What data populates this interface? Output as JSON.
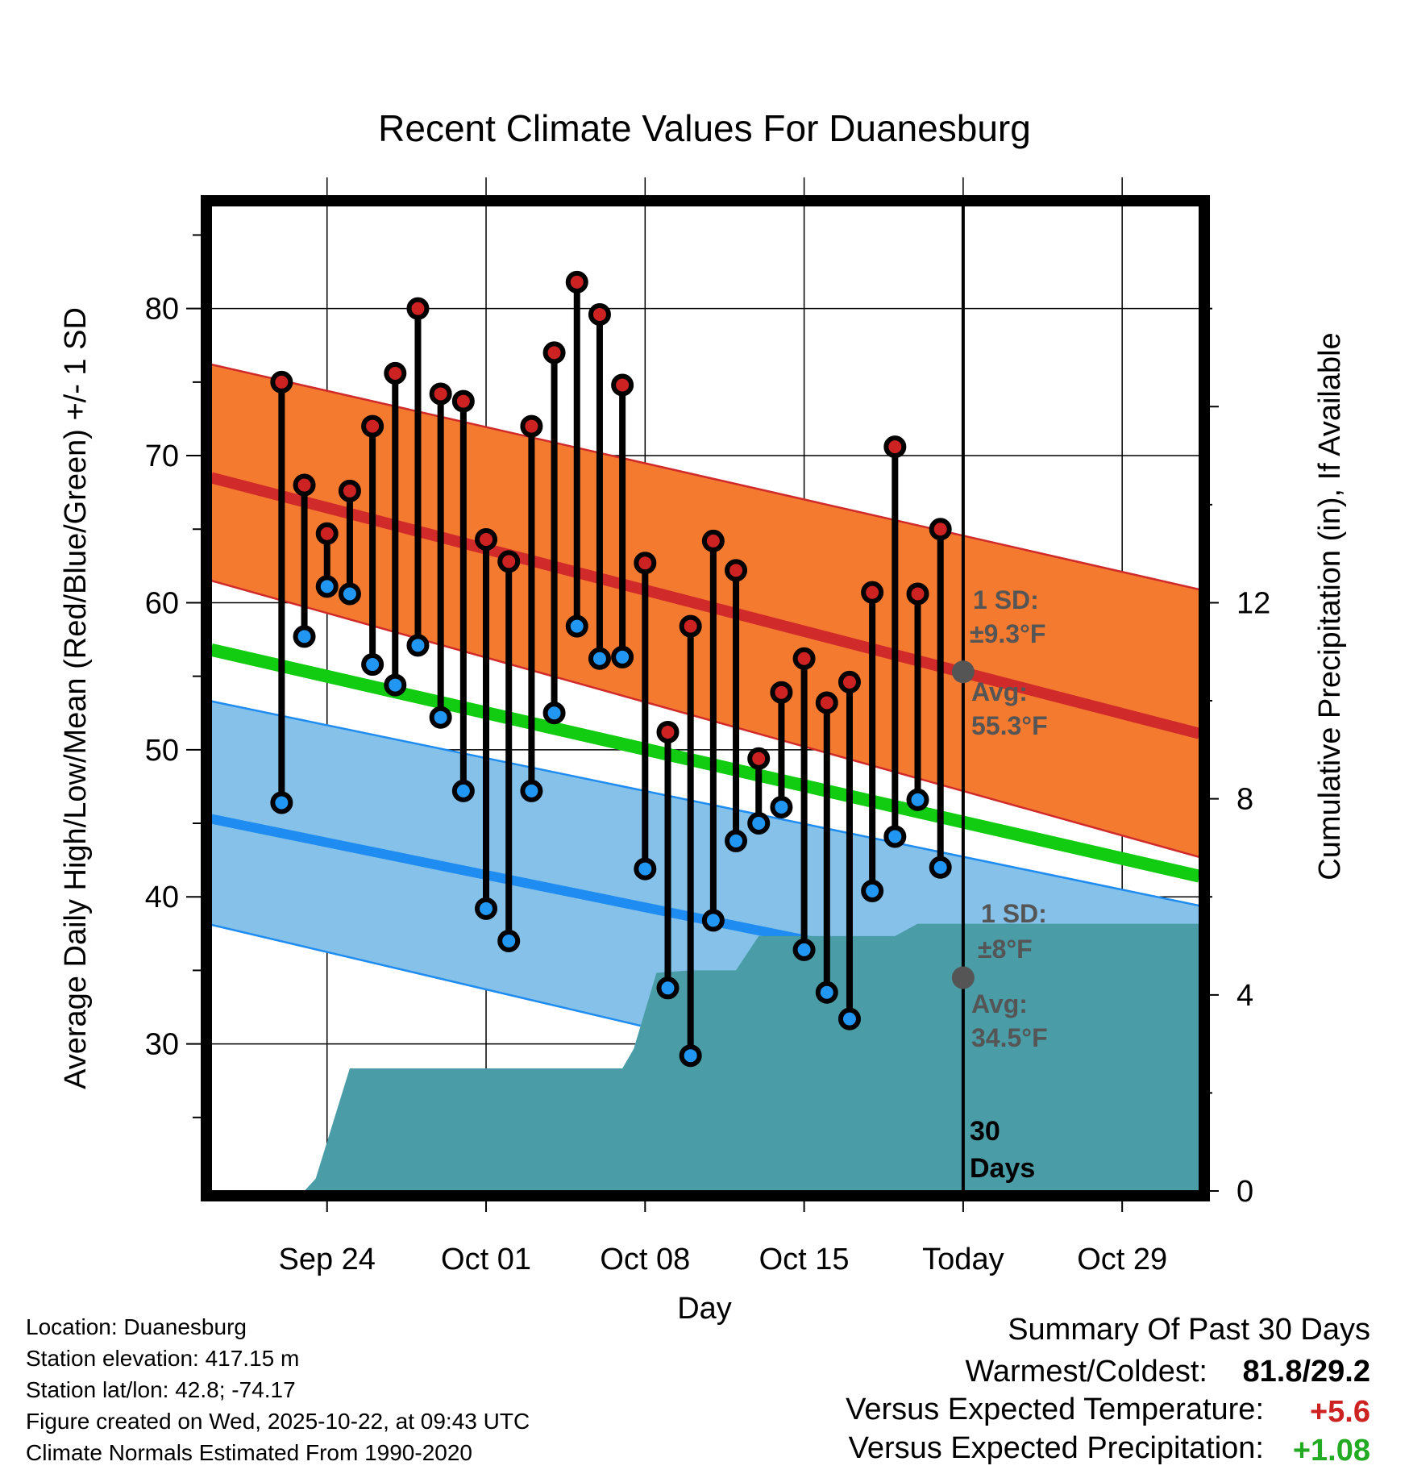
{
  "chart_data": {
    "type": "line",
    "title": "Recent Climate Values For Duanesburg",
    "xlabel": "Day",
    "ylabel": "Average Daily High/Low/Mean (Red/Blue/Green) +/- 1 SD",
    "y2label": "Cumulative Precipitation (in), If Available",
    "ylim": [
      20,
      87
    ],
    "y2lim": [
      0,
      20.1
    ],
    "yticks": [
      "30",
      "40",
      "50",
      "60",
      "70",
      "80"
    ],
    "y2ticks": [
      "0",
      "4",
      "8",
      "12"
    ],
    "x_range_days": [
      -33.1,
      10.4
    ],
    "xticks": [
      {
        "day": -28,
        "label": "Sep 24"
      },
      {
        "day": -21,
        "label": "Oct 01"
      },
      {
        "day": -14,
        "label": "Oct 08"
      },
      {
        "day": -7,
        "label": "Oct 15"
      },
      {
        "day": 0,
        "label": "Today"
      },
      {
        "day": 7,
        "label": "Oct 29"
      }
    ],
    "days": [
      -30,
      -29,
      -28,
      -27,
      -26,
      -25,
      -24,
      -23,
      -22,
      -21,
      -20,
      -19,
      -18,
      -17,
      -16,
      -15,
      -14,
      -13,
      -12,
      -11,
      -10,
      -9,
      -8,
      -7,
      -6,
      -5,
      -4,
      -3,
      -2,
      -1
    ],
    "highs": [
      75.0,
      68.0,
      64.7,
      67.6,
      72.0,
      75.6,
      80.0,
      74.2,
      73.7,
      64.3,
      62.8,
      72.0,
      77.0,
      81.8,
      79.6,
      74.8,
      62.7,
      51.2,
      58.4,
      64.2,
      62.2,
      49.4,
      53.9,
      56.2,
      53.2,
      54.6,
      60.7,
      70.6,
      60.6,
      65.0
    ],
    "lows": [
      46.4,
      57.7,
      61.1,
      60.6,
      55.8,
      54.4,
      57.1,
      52.2,
      47.2,
      39.2,
      37.0,
      47.2,
      52.5,
      58.4,
      56.2,
      56.3,
      41.9,
      33.8,
      29.2,
      38.4,
      43.8,
      45.0,
      46.1,
      36.4,
      33.5,
      31.7,
      40.4,
      44.1,
      46.6,
      42.0
    ],
    "normals": {
      "start_day": -33.1,
      "end_day": 10.4,
      "high_avg": [
        68.5,
        51.1
      ],
      "high_upper": [
        76.2,
        60.9
      ],
      "high_lower": [
        61.5,
        42.7
      ],
      "mean_avg": [
        56.8,
        41.4
      ],
      "low_avg": [
        45.3,
        31.6
      ],
      "low_upper": [
        53.3,
        39.4
      ],
      "low_lower": [
        38.1,
        22.3
      ]
    },
    "precip_cumulative": {
      "days": [
        -33.1,
        -29,
        -28.5,
        -27,
        -16,
        -15,
        -14.5,
        -13.5,
        -12,
        -10,
        -9,
        -5,
        -3,
        -2,
        0,
        10.4
      ],
      "values": [
        0.0,
        0.0,
        0.25,
        2.5,
        2.5,
        2.5,
        2.9,
        4.45,
        4.5,
        4.5,
        5.2,
        5.2,
        5.2,
        5.45,
        5.45,
        5.45
      ]
    },
    "today_high_avg": 55.3,
    "today_low_avg": 34.5,
    "annotations": {
      "high_sd_line1": "1 SD:",
      "high_sd_line2": "±9.3°F",
      "high_avg_line1": "Avg:",
      "high_avg_line2": "55.3°F",
      "low_sd_line1": "1 SD:",
      "low_sd_line2": "±8°F",
      "low_avg_line1": "Avg:",
      "low_avg_line2": "34.5°F",
      "days_line1": "30",
      "days_line2": "Days"
    },
    "colors": {
      "high_band": "#f47a30",
      "high_line": "#d02a2a",
      "low_band": "#85c1e9",
      "low_line": "#1e8cf0",
      "mean_line": "#11cc11",
      "precip": "#4a9ca7",
      "high_marker": "#cc2222",
      "low_marker": "#2196f3",
      "avg_marker": "#555555",
      "positive_temp": "#cc2222",
      "positive_precip": "#22aa22"
    }
  },
  "info": {
    "location": "Location: Duanesburg",
    "elevation": "Station elevation: 417.15 m",
    "latlon": "Station lat/lon: 42.8; -74.17",
    "created": "Figure created on Wed, 2025-10-22, at 09:43 UTC",
    "normals": "Climate Normals Estimated From 1990-2020"
  },
  "summary": {
    "heading": "Summary Of Past 30 Days",
    "warm_cold_label": "Warmest/Coldest:",
    "warm_cold_value": "81.8/29.2",
    "temp_label": "Versus Expected Temperature:",
    "temp_value": "+5.6",
    "precip_label": "Versus Expected Precipitation:",
    "precip_value": "+1.08"
  }
}
